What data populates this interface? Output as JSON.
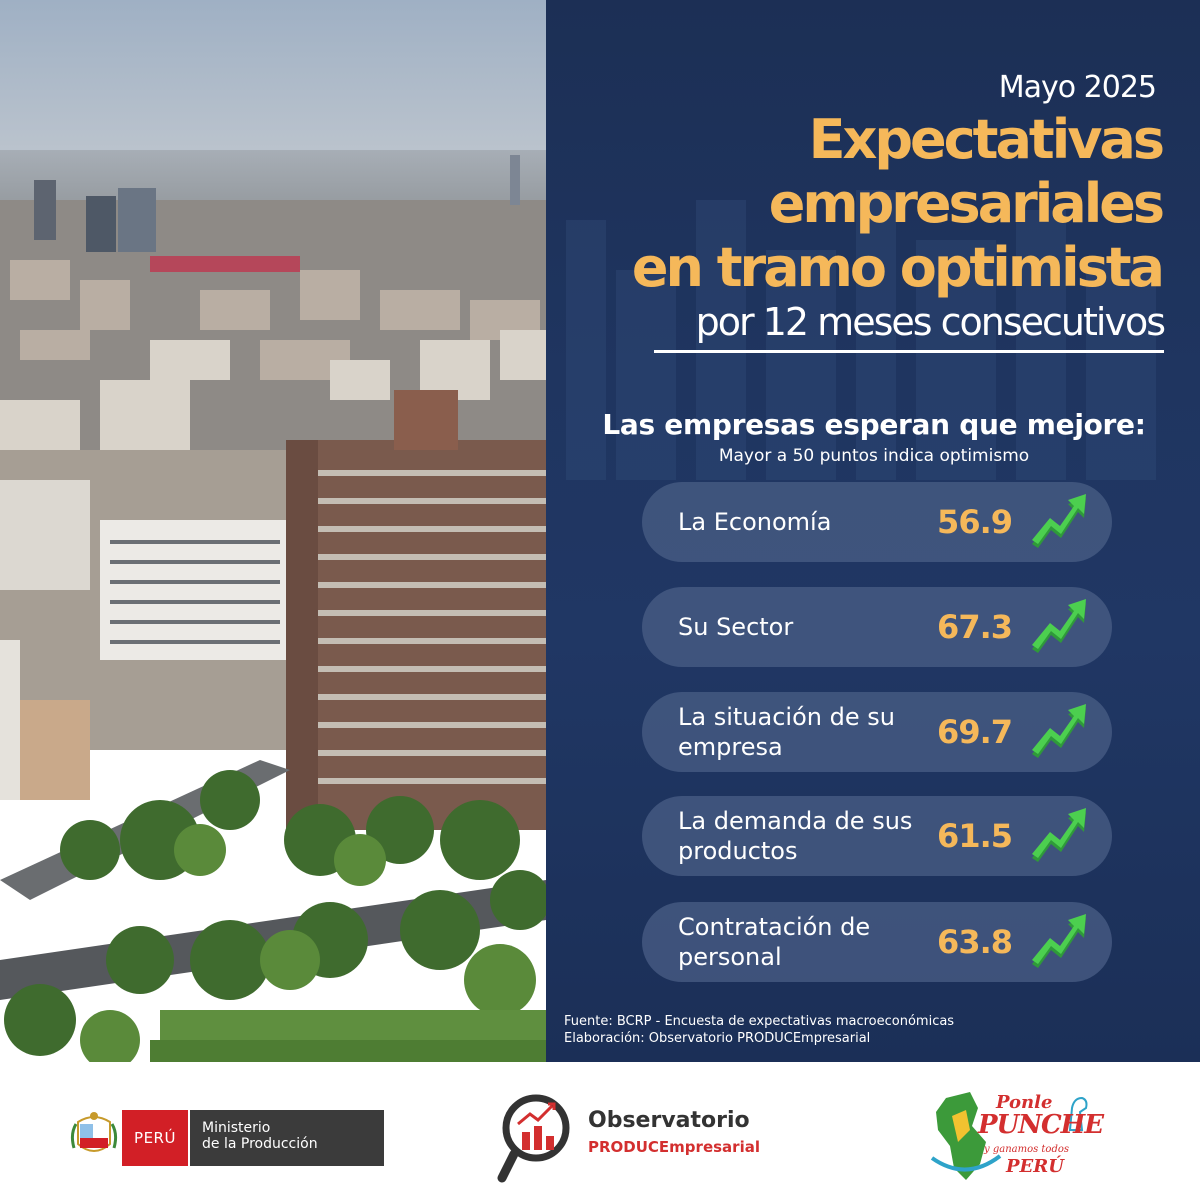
{
  "header": {
    "date": "Mayo 2025",
    "title_lines": [
      "Expectativas",
      "empresariales",
      "en tramo optimista"
    ],
    "subtitle": "por 12 meses consecutivos"
  },
  "section": {
    "heading": "Las empresas esperan que mejore:",
    "note": "Mayor a 50 puntos indica optimismo"
  },
  "indicators": [
    {
      "label": "La Economía",
      "value": "56.9",
      "trend_icon": "trend-up-arrow-icon"
    },
    {
      "label": "Su Sector",
      "value": "67.3",
      "trend_icon": "trend-up-arrow-icon"
    },
    {
      "label": "La situación de su empresa",
      "value": "69.7",
      "trend_icon": "trend-up-arrow-icon"
    },
    {
      "label": "La demanda de sus productos",
      "value": "61.5",
      "trend_icon": "trend-up-arrow-icon"
    },
    {
      "label": "Contratación de personal",
      "value": "63.8",
      "trend_icon": "trend-up-arrow-icon"
    }
  ],
  "footnotes": {
    "source": "Fuente: BCRP - Encuesta de expectativas macroeconómicas",
    "credit": "Elaboración: Observatorio PRODUCEmpresarial"
  },
  "footer": {
    "peru": {
      "country": "PERÚ",
      "ministry_line1": "Ministerio",
      "ministry_line2": "de la Producción"
    },
    "observatorio": {
      "title": "Observatorio",
      "subtitle": "PRODUCEmpresarial"
    },
    "punche": {
      "line1": "Ponle",
      "line2": "PUNCHE",
      "line3": "y ganamos todos",
      "line4": "PERÚ"
    }
  },
  "colors": {
    "panel_bg": "#1f3560",
    "accent": "#f5b85a",
    "card_bg": "#485c84",
    "arrow_green": "#3cb043",
    "peru_red": "#d21f26"
  }
}
